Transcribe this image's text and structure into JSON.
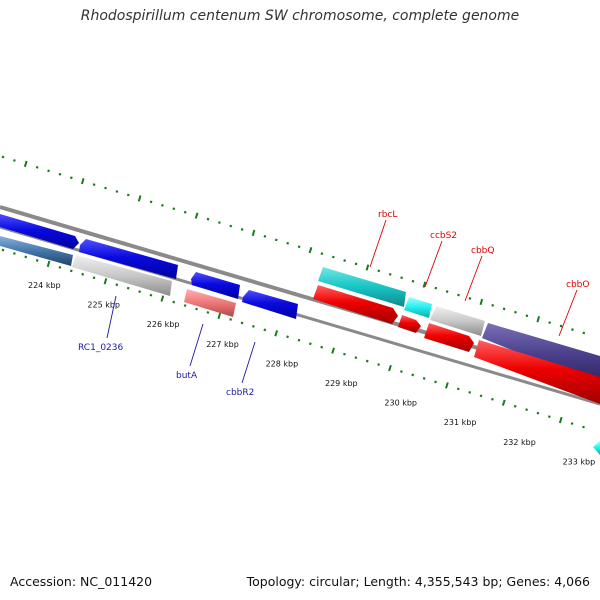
{
  "title": "Rhodospirillum centenum SW chromosome, complete genome",
  "footer": {
    "accession": "Accession: NC_011420",
    "topology": "Topology: circular; Length: 4,355,543 bp; Genes: 4,066"
  },
  "kbp_labels": [
    {
      "text": "224 kbp",
      "pos": 224
    },
    {
      "text": "225 kbp",
      "pos": 225
    },
    {
      "text": "226 kbp",
      "pos": 226
    },
    {
      "text": "227 kbp",
      "pos": 227
    },
    {
      "text": "228 kbp",
      "pos": 228
    },
    {
      "text": "229 kbp",
      "pos": 229
    },
    {
      "text": "230 kbp",
      "pos": 230
    },
    {
      "text": "231 kbp",
      "pos": 231
    },
    {
      "text": "232 kbp",
      "pos": 232
    },
    {
      "text": "233 kbp",
      "pos": 233
    }
  ],
  "gene_labels": [
    {
      "name": "rbcL",
      "color": "#dd0000"
    },
    {
      "name": "ccbS2",
      "color": "#dd0000"
    },
    {
      "name": "cbbQ",
      "color": "#dd0000"
    },
    {
      "name": "cbbO",
      "color": "#dd0000"
    },
    {
      "name": "RC1_0236",
      "color": "#1a1aaa"
    },
    {
      "name": "butA",
      "color": "#1a1aaa"
    },
    {
      "name": "cbbR2",
      "color": "#1a1aaa"
    }
  ],
  "colors": {
    "forward_blue": "#0a0adf",
    "reverse_red": "#ee0000",
    "cyan": "#18cccc",
    "light_cyan": "#22eeee",
    "grey": "#c8c8c8",
    "navy": "#4a3f8a",
    "pink": "#ee7777",
    "steel_blue": "#4477aa",
    "backbone": "#888888",
    "tick_green": "#1a7a1a"
  }
}
